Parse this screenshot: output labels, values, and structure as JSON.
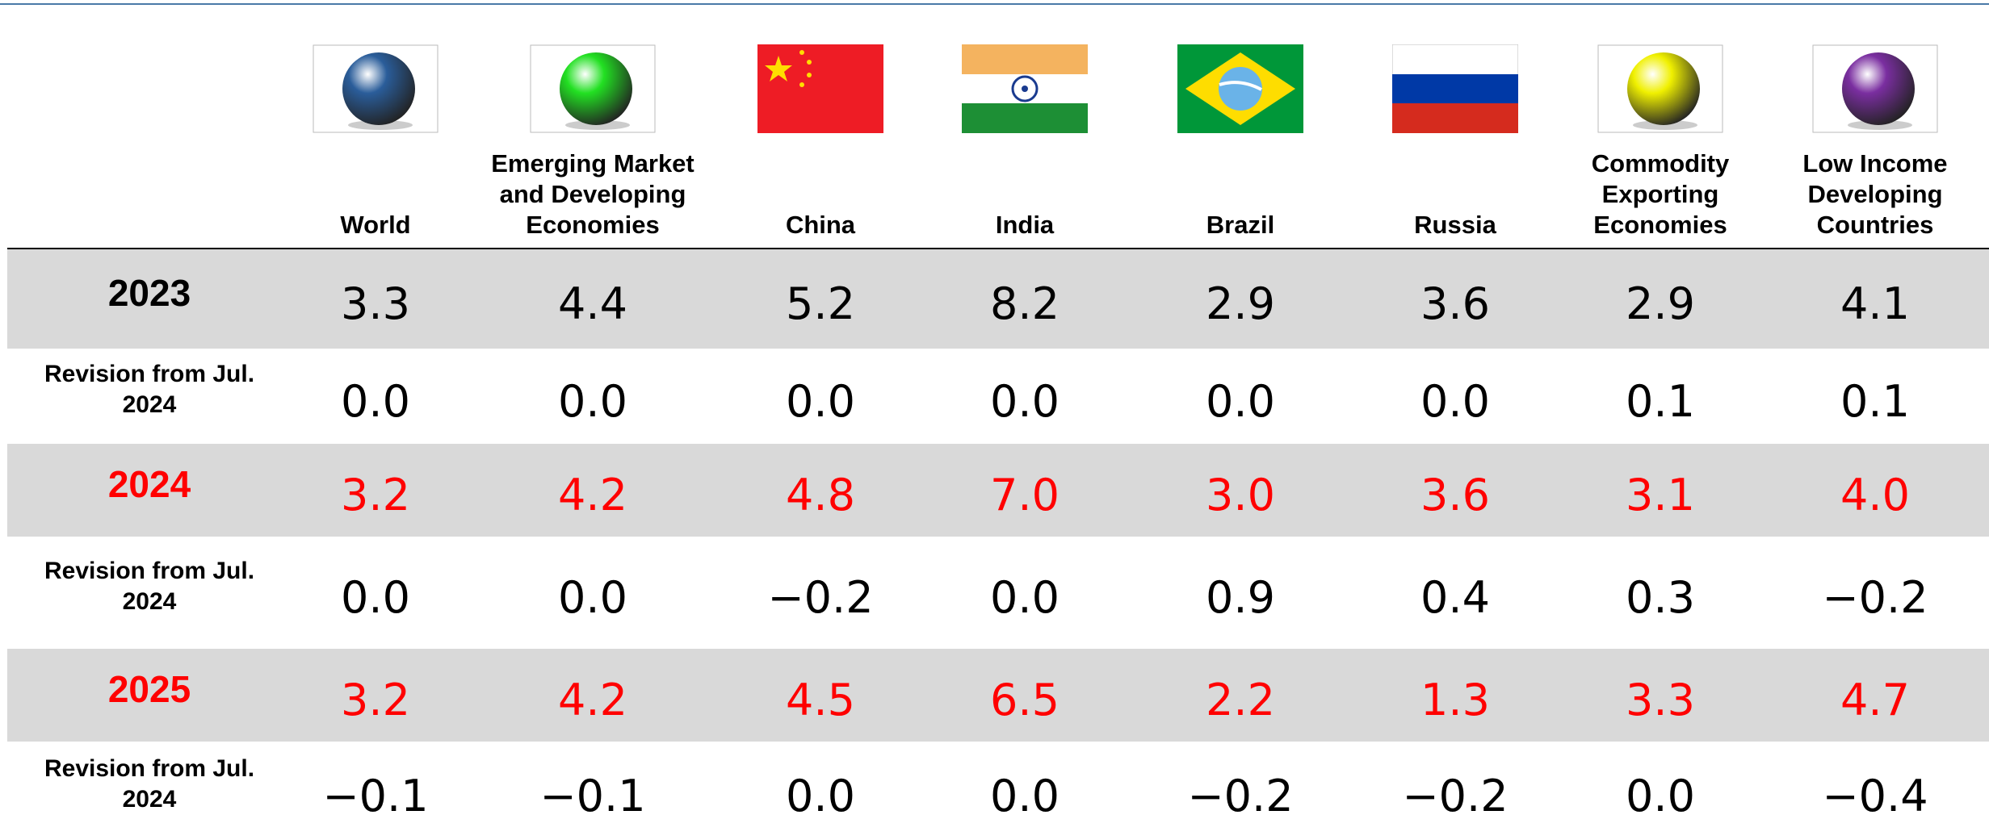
{
  "table": {
    "columns": [
      "World",
      "Emerging Market and Developing Economies",
      "China",
      "India",
      "Brazil",
      "Russia",
      "Commodity Exporting Economies",
      "Low Income Developing Countries"
    ],
    "rows": [
      {
        "label": "2023",
        "shaded": true,
        "color": "#000000",
        "values": [
          "3.3",
          "4.4",
          "5.2",
          "8.2",
          "2.9",
          "3.6",
          "2.9",
          "4.1"
        ]
      },
      {
        "label": "Revision from Jul. 2024",
        "shaded": false,
        "color": "#000000",
        "values": [
          "0.0",
          "0.0",
          "0.0",
          "0.0",
          "0.0",
          "0.0",
          "0.1",
          "0.1"
        ]
      },
      {
        "label": "2024",
        "shaded": true,
        "color": "#ff0000",
        "values": [
          "3.2",
          "4.2",
          "4.8",
          "7.0",
          "3.0",
          "3.6",
          "3.1",
          "4.0"
        ]
      },
      {
        "label": "Revision from Jul. 2024",
        "shaded": false,
        "color": "#000000",
        "values": [
          "0.0",
          "0.0",
          "−0.2",
          "0.0",
          "0.9",
          "0.4",
          "0.3",
          "−0.2"
        ]
      },
      {
        "label": "2025",
        "shaded": true,
        "color": "#ff0000",
        "values": [
          "3.2",
          "4.2",
          "4.5",
          "6.5",
          "2.2",
          "1.3",
          "3.3",
          "4.7"
        ]
      },
      {
        "label": "Revision from Jul. 2024",
        "shaded": false,
        "color": "#000000",
        "values": [
          "−0.1",
          "−0.1",
          "0.0",
          "0.0",
          "−0.2",
          "−0.2",
          "0.0",
          "−0.4"
        ]
      }
    ]
  }
}
